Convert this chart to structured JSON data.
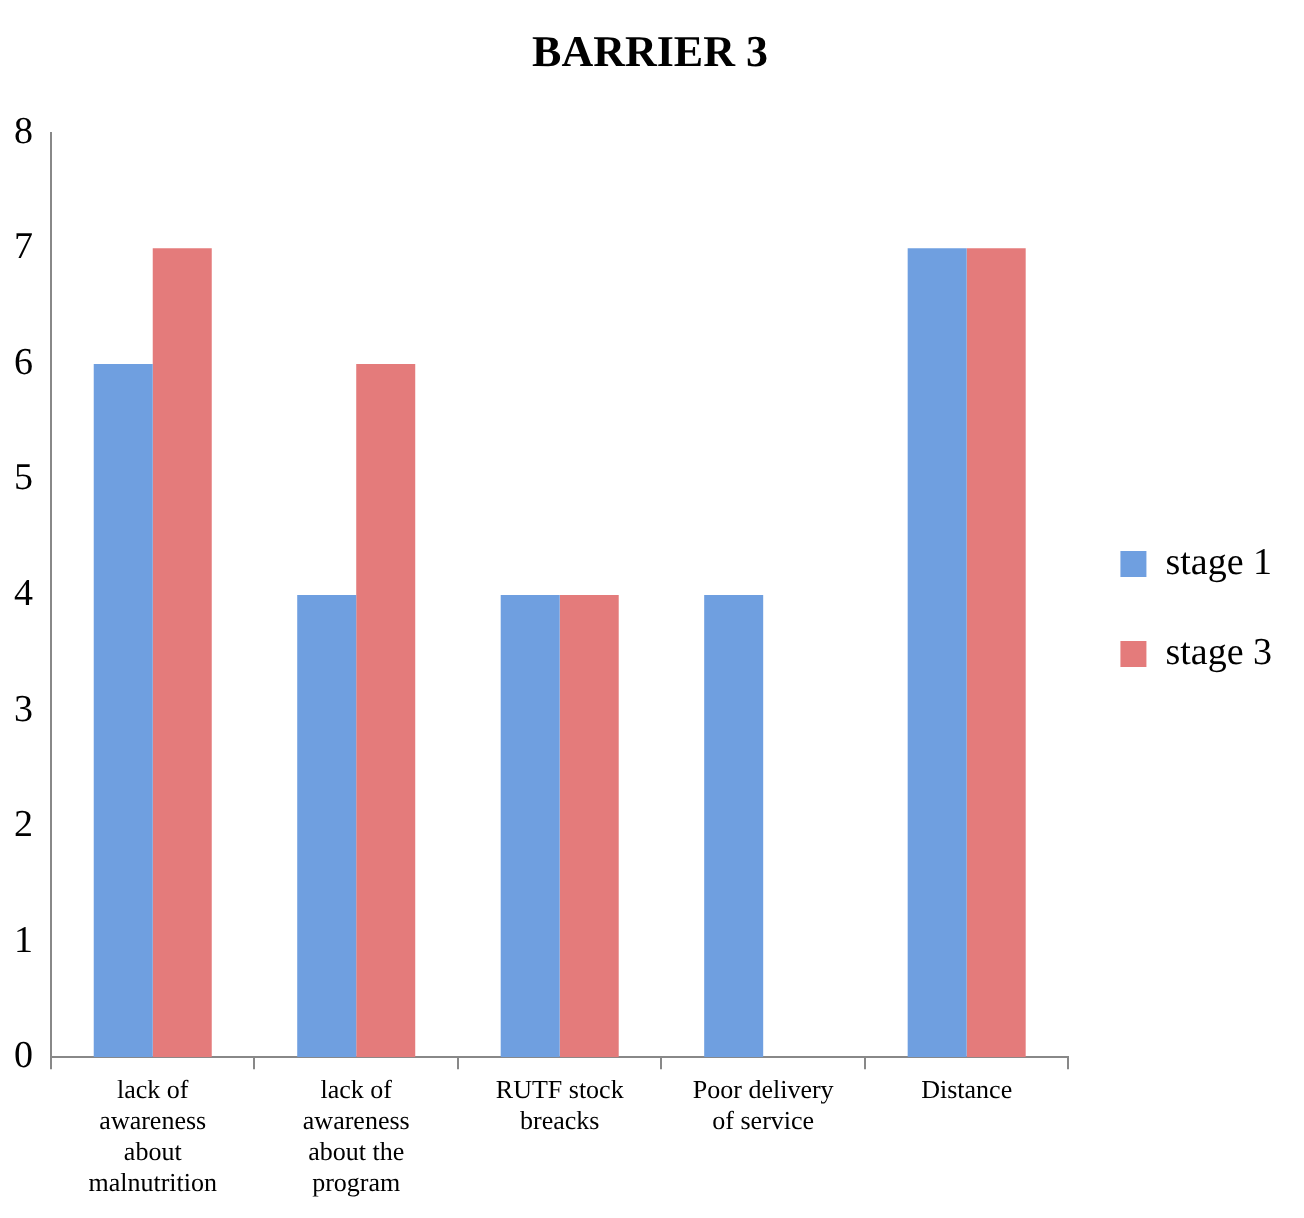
{
  "chart_data": {
    "type": "bar",
    "title": "BARRIER 3",
    "categories": [
      "lack of awareness about malnutrition",
      "lack of awareness about the program",
      "RUTF stock breacks",
      "Poor delivery of service",
      "Distance"
    ],
    "series": [
      {
        "name": "stage 1",
        "color": "#6f9fe0",
        "values": [
          6,
          4,
          4,
          4,
          7
        ]
      },
      {
        "name": "stage 3",
        "color": "#e47b7b",
        "values": [
          7,
          6,
          4,
          0,
          7
        ]
      }
    ],
    "ylim": [
      0,
      8
    ],
    "yticks": [
      0,
      1,
      2,
      3,
      4,
      5,
      6,
      7,
      8
    ],
    "grid": false,
    "legend": "right"
  }
}
